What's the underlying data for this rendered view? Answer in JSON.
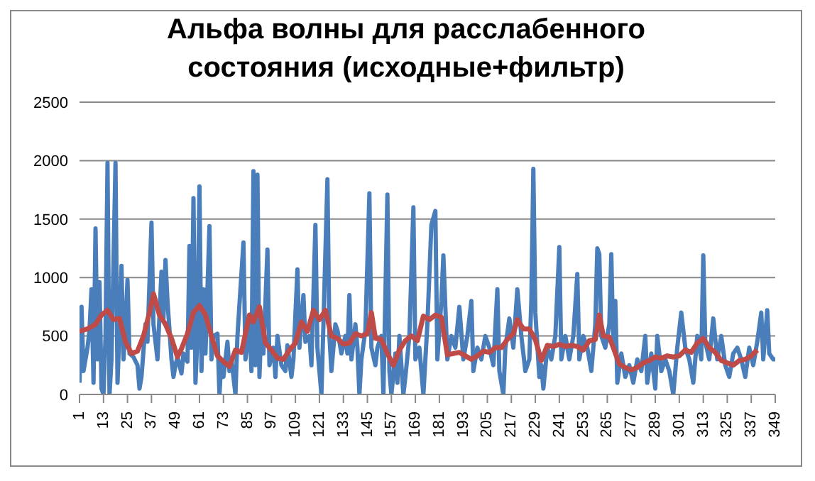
{
  "chart_data": {
    "type": "line",
    "title": "Альфа волны для расслабенного состояния (исходные+фильтр)",
    "xlim": [
      1,
      349
    ],
    "xticks": [
      1,
      13,
      25,
      37,
      49,
      61,
      73,
      85,
      97,
      109,
      121,
      133,
      145,
      157,
      169,
      181,
      193,
      205,
      217,
      229,
      241,
      253,
      265,
      277,
      289,
      301,
      313,
      325,
      337,
      349
    ],
    "ylim": [
      0,
      2500
    ],
    "yticks": [
      0,
      500,
      1000,
      1500,
      2000,
      2500
    ],
    "grid": "y",
    "marker": "none",
    "line_style": "solid",
    "series": [
      {
        "color": "#4a7ebb",
        "x": [
          1,
          2,
          3,
          5,
          6,
          7,
          8,
          9,
          10,
          11,
          12,
          13,
          14,
          15,
          16,
          17,
          19,
          20,
          21,
          22,
          23,
          24,
          25,
          26,
          28,
          30,
          31,
          32,
          34,
          35,
          37,
          38,
          40,
          42,
          43,
          44,
          45,
          47,
          48,
          49,
          50,
          52,
          53,
          55,
          56,
          57,
          58,
          59,
          60,
          61,
          62,
          63,
          64,
          66,
          67,
          68,
          70,
          71,
          72,
          73,
          75,
          76,
          77,
          79,
          80,
          83,
          84,
          86,
          87,
          88,
          89,
          90,
          91,
          92,
          93,
          95,
          96,
          98,
          99,
          100,
          102,
          104,
          105,
          107,
          108,
          110,
          111,
          113,
          114,
          116,
          117,
          119,
          120,
          122,
          123,
          125,
          126,
          127,
          129,
          130,
          132,
          134,
          135,
          136,
          137,
          139,
          140,
          141,
          142,
          144,
          146,
          147,
          149,
          150,
          152,
          153,
          155,
          156,
          157,
          159,
          160,
          161,
          163,
          164,
          166,
          168,
          169,
          171,
          173,
          175,
          177,
          179,
          180,
          182,
          183,
          185,
          187,
          189,
          191,
          193,
          195,
          197,
          198,
          200,
          202,
          204,
          206,
          208,
          210,
          211,
          213,
          214,
          216,
          218,
          220,
          222,
          224,
          226,
          227,
          228,
          229,
          231,
          232,
          233,
          235,
          237,
          239,
          241,
          242,
          244,
          246,
          248,
          250,
          251,
          253,
          255,
          257,
          259,
          260,
          261,
          262,
          264,
          266,
          267,
          268,
          269,
          270,
          272,
          274,
          276,
          278,
          280,
          282,
          284,
          285,
          287,
          289,
          290,
          292,
          294,
          296,
          298,
          300,
          302,
          304,
          306,
          308,
          310,
          312,
          313,
          314,
          316,
          318,
          320,
          322,
          324,
          326,
          328,
          330,
          332,
          334,
          336,
          338,
          340,
          342,
          343,
          345,
          346,
          348,
          349
        ],
        "values": [
          100,
          750,
          200,
          400,
          550,
          900,
          100,
          1420,
          300,
          960,
          50,
          0,
          500,
          1980,
          0,
          300,
          1980,
          100,
          550,
          1100,
          300,
          600,
          980,
          350,
          320,
          250,
          50,
          150,
          600,
          450,
          1470,
          600,
          300,
          1050,
          650,
          1150,
          800,
          300,
          150,
          250,
          320,
          180,
          350,
          280,
          1270,
          400,
          1680,
          100,
          500,
          1780,
          200,
          900,
          350,
          1440,
          300,
          500,
          520,
          0,
          300,
          150,
          450,
          200,
          300,
          0,
          500,
          1300,
          300,
          600,
          200,
          1910,
          250,
          1880,
          150,
          620,
          350,
          1240,
          250,
          400,
          150,
          500,
          250,
          200,
          420,
          150,
          300,
          1070,
          400,
          850,
          450,
          500,
          250,
          1450,
          400,
          0,
          600,
          1840,
          500,
          200,
          600,
          550,
          350,
          500,
          350,
          850,
          300,
          600,
          400,
          0,
          300,
          550,
          1720,
          400,
          250,
          400,
          500,
          0,
          1710,
          200,
          0,
          350,
          100,
          500,
          0,
          150,
          500,
          1600,
          300,
          400,
          0,
          600,
          1450,
          1570,
          300,
          800,
          1190,
          300,
          500,
          400,
          750,
          300,
          500,
          800,
          200,
          400,
          300,
          500,
          400,
          250,
          900,
          200,
          0,
          400,
          650,
          400,
          900,
          500,
          200,
          300,
          800,
          1930,
          700,
          150,
          250,
          50,
          400,
          300,
          500,
          1260,
          300,
          500,
          300,
          500,
          1030,
          300,
          500,
          400,
          200,
          600,
          1250,
          1200,
          500,
          400,
          600,
          1200,
          400,
          800,
          100,
          350,
          150,
          250,
          100,
          300,
          200,
          500,
          100,
          350,
          50,
          500,
          200,
          300,
          200,
          0,
          400,
          700,
          400,
          300,
          100,
          500,
          300,
          1190,
          450,
          300,
          650,
          300,
          500,
          250,
          150,
          350,
          400,
          300,
          150,
          400,
          250,
          450,
          700,
          300,
          720,
          350,
          300,
          300
        ]
      },
      {
        "color": "#be4b48",
        "x": [
          1,
          5,
          9,
          12,
          15,
          18,
          21,
          24,
          27,
          30,
          33,
          36,
          38,
          41,
          44,
          47,
          50,
          52,
          55,
          58,
          61,
          64,
          67,
          70,
          73,
          76,
          79,
          82,
          86,
          88,
          91,
          94,
          97,
          100,
          103,
          106,
          109,
          112,
          115,
          118,
          121,
          124,
          127,
          130,
          133,
          136,
          139,
          142,
          145,
          147,
          149,
          152,
          155,
          158,
          161,
          164,
          167,
          170,
          173,
          176,
          179,
          182,
          185,
          188,
          191,
          194,
          197,
          200,
          203,
          206,
          209,
          212,
          215,
          218,
          220,
          223,
          226,
          229,
          232,
          235,
          238,
          241,
          244,
          247,
          250,
          253,
          256,
          259,
          261,
          263,
          266,
          268,
          271,
          274,
          277,
          280,
          283,
          286,
          289,
          292,
          295,
          298,
          301,
          304,
          307,
          310,
          313,
          316,
          319,
          322,
          325,
          328,
          331,
          334,
          337,
          340
        ],
        "values": [
          540,
          560,
          600,
          680,
          720,
          640,
          650,
          450,
          350,
          370,
          500,
          700,
          860,
          680,
          600,
          480,
          320,
          390,
          520,
          700,
          760,
          680,
          500,
          330,
          280,
          240,
          380,
          360,
          680,
          620,
          750,
          440,
          380,
          310,
          300,
          380,
          440,
          620,
          540,
          720,
          640,
          720,
          500,
          480,
          430,
          440,
          520,
          500,
          520,
          700,
          480,
          470,
          350,
          250,
          380,
          460,
          500,
          460,
          670,
          640,
          680,
          660,
          340,
          350,
          360,
          330,
          300,
          330,
          370,
          360,
          400,
          400,
          470,
          520,
          640,
          560,
          560,
          470,
          290,
          420,
          410,
          430,
          410,
          420,
          410,
          380,
          460,
          470,
          680,
          500,
          490,
          400,
          260,
          230,
          210,
          230,
          270,
          290,
          320,
          310,
          330,
          320,
          330,
          380,
          360,
          440,
          480,
          400,
          360,
          290,
          270,
          250,
          290,
          300,
          330,
          380
        ]
      }
    ]
  }
}
